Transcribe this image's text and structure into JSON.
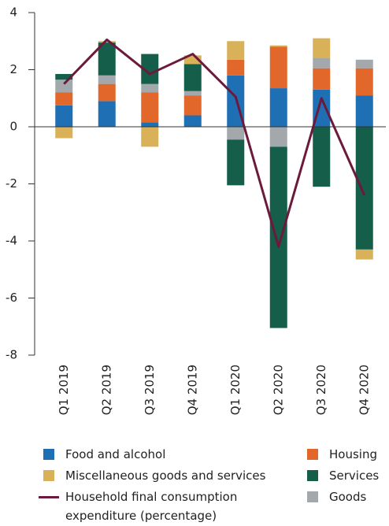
{
  "chart_data": {
    "type": "bar",
    "categories": [
      "Q1 2019",
      "Q2 2019",
      "Q3 2019",
      "Q4 2019",
      "Q1 2020",
      "Q2 2020",
      "Q3 2020",
      "Q4 2020"
    ],
    "stacked": true,
    "series": [
      {
        "name": "Food and alcohol",
        "color": "#1f6fb5",
        "values": [
          0.75,
          0.9,
          0.15,
          0.4,
          1.8,
          1.35,
          1.3,
          1.1
        ]
      },
      {
        "name": "Housing",
        "color": "#e2672a",
        "values": [
          0.45,
          0.6,
          1.05,
          0.7,
          0.55,
          1.45,
          0.75,
          0.95
        ]
      },
      {
        "name": "Goods",
        "color": "#a2a8ac",
        "values": [
          0.45,
          0.3,
          0.3,
          0.15,
          -0.45,
          -0.7,
          0.35,
          0.3
        ]
      },
      {
        "name": "Services",
        "color": "#145e4a",
        "values": [
          0.2,
          1.15,
          1.05,
          0.95,
          -1.6,
          -6.35,
          -2.1,
          -4.3
        ]
      },
      {
        "name": "Miscellaneous goods and services",
        "color": "#d9b158",
        "values": [
          -0.4,
          0.05,
          -0.7,
          0.3,
          0.65,
          0.05,
          0.7,
          -0.35
        ]
      }
    ],
    "line": {
      "name": "Household final consumption expenditure (percentage)",
      "color": "#6b1a3b",
      "values": [
        1.5,
        3.05,
        1.85,
        2.55,
        1.05,
        -4.2,
        1.0,
        -2.4
      ]
    },
    "ylim": [
      -8,
      4
    ],
    "yticks": [
      -8,
      -6,
      -4,
      -2,
      0,
      2,
      4
    ],
    "grid": false
  }
}
